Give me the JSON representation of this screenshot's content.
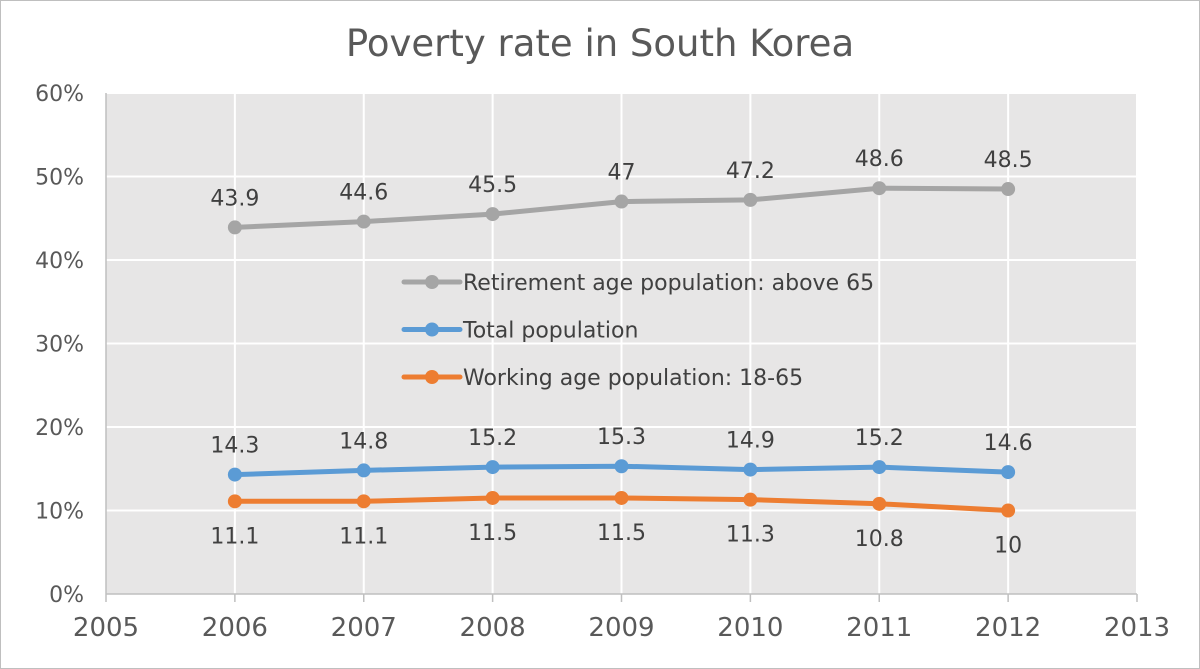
{
  "chart_data": {
    "type": "line",
    "title": "Poverty rate in South Korea",
    "xlabel": "",
    "ylabel": "",
    "xlim": [
      2005,
      2013
    ],
    "ylim": [
      0,
      60
    ],
    "x_ticks": [
      "2005",
      "2006",
      "2007",
      "2008",
      "2009",
      "2010",
      "2011",
      "2012",
      "2013"
    ],
    "y_ticks": [
      "0%",
      "10%",
      "20%",
      "30%",
      "40%",
      "50%",
      "60%"
    ],
    "grid": true,
    "legend_position": "center",
    "x": [
      2006,
      2007,
      2008,
      2009,
      2010,
      2011,
      2012
    ],
    "series": [
      {
        "name": "Retirement age population: above 65",
        "color": "#a5a5a5",
        "values": [
          43.9,
          44.6,
          45.5,
          47,
          47.2,
          48.6,
          48.5
        ],
        "labels": [
          "43.9",
          "44.6",
          "45.5",
          "47",
          "47.2",
          "48.6",
          "48.5"
        ],
        "label_position": "above"
      },
      {
        "name": "Total population",
        "color": "#5b9bd5",
        "values": [
          14.3,
          14.8,
          15.2,
          15.3,
          14.9,
          15.2,
          14.6
        ],
        "labels": [
          "14.3",
          "14.8",
          "15.2",
          "15.3",
          "14.9",
          "15.2",
          "14.6"
        ],
        "label_position": "above"
      },
      {
        "name": "Working age population: 18-65",
        "color": "#ed7d31",
        "values": [
          11.1,
          11.1,
          11.5,
          11.5,
          11.3,
          10.8,
          10
        ],
        "labels": [
          "11.1",
          "11.1",
          "11.5",
          "11.5",
          "11.3",
          "10.8",
          "10"
        ],
        "label_position": "below"
      }
    ]
  }
}
